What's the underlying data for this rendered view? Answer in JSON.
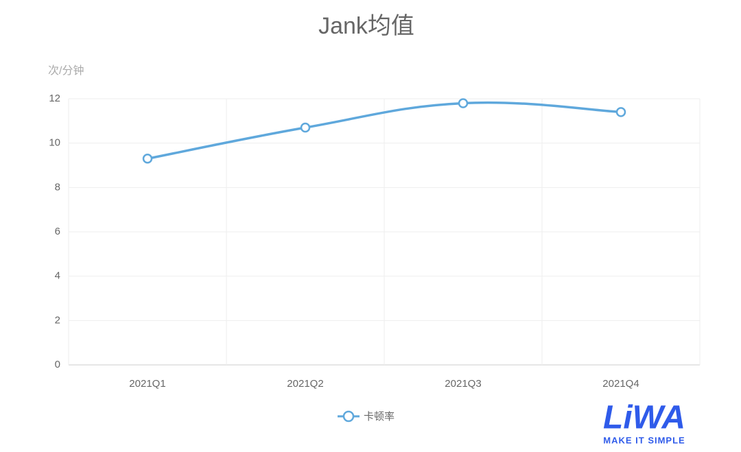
{
  "chart_data": {
    "type": "line",
    "title": "Jank均值",
    "y_label": "次/分钟",
    "categories": [
      "2021Q1",
      "2021Q2",
      "2021Q3",
      "2021Q4"
    ],
    "series": [
      {
        "name": "卡顿率",
        "color": "#5fa8dc",
        "values": [
          9.3,
          10.7,
          11.8,
          11.4
        ]
      }
    ],
    "ylim": [
      0,
      12
    ],
    "yticks": [
      0,
      2,
      4,
      6,
      8,
      10,
      12
    ],
    "grid": true,
    "smooth": true,
    "logo": {
      "text": "LiWA",
      "tagline": "MAKE IT SIMPLE",
      "color": "#2f5bea"
    }
  }
}
